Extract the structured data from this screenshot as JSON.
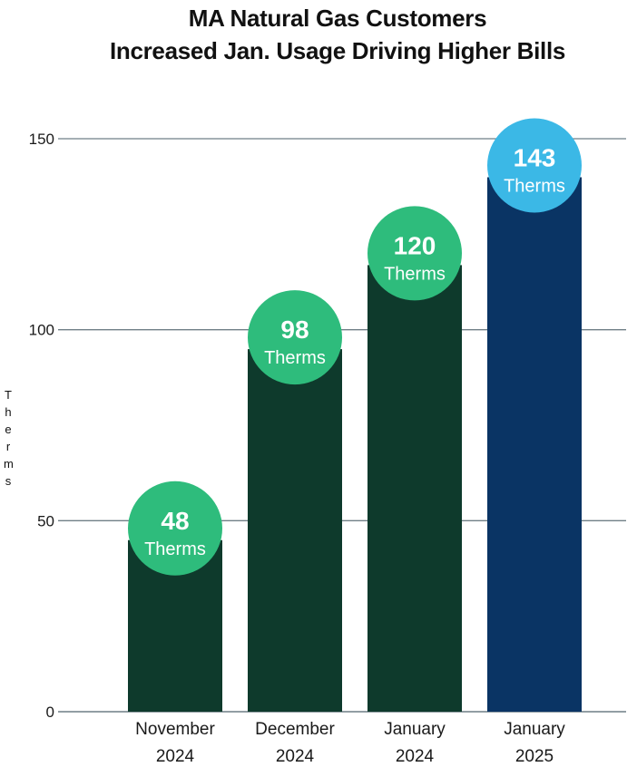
{
  "chart_data": {
    "type": "bar",
    "title_lines": [
      "MA Natural Gas Customers",
      "Increased Jan. Usage Driving Higher Bills"
    ],
    "ylabel": "Therms",
    "ylim": [
      0,
      150
    ],
    "yticks": [
      0,
      50,
      100,
      150
    ],
    "grid": true,
    "categories": [
      {
        "line1": "November",
        "line2": "2024"
      },
      {
        "line1": "December",
        "line2": "2024"
      },
      {
        "line1": "January",
        "line2": "2024"
      },
      {
        "line1": "January",
        "line2": "2025"
      }
    ],
    "values": [
      48,
      98,
      120,
      143
    ],
    "data_labels": [
      {
        "value": "48",
        "unit": "Therms"
      },
      {
        "value": "98",
        "unit": "Therms"
      },
      {
        "value": "120",
        "unit": "Therms"
      },
      {
        "value": "143",
        "unit": "Therms"
      }
    ],
    "bar_colors": [
      "#0e3a2c",
      "#0e3a2c",
      "#0e3a2c",
      "#0a3464"
    ],
    "badge_colors": [
      "#2ebc7c",
      "#2ebc7c",
      "#2ebc7c",
      "#3bb8e6"
    ],
    "grid_color": "#6f7f86"
  }
}
